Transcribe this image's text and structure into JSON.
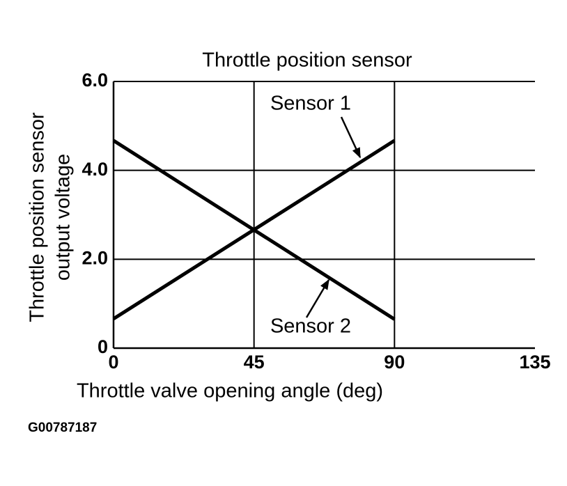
{
  "chart_data": {
    "type": "line",
    "title": "Throttle position sensor",
    "x_label": "Throttle valve opening angle (deg)",
    "y_label": [
      "Throttle position sensor",
      "output voltage"
    ],
    "footnote": "G00787187",
    "x": [
      0,
      90
    ],
    "series": [
      {
        "name": "Sensor 1",
        "color": "#000000",
        "values": [
          0.66,
          4.67
        ]
      },
      {
        "name": "Sensor 2",
        "color": "#000000",
        "values": [
          4.67,
          0.65
        ]
      }
    ],
    "xlim": [
      0,
      135
    ],
    "xticks": [
      0,
      45,
      90,
      135
    ],
    "ylim": [
      0,
      6
    ],
    "yticks": [
      0,
      {
        "value": 2,
        "label": "2.0"
      },
      {
        "value": 4,
        "label": "4.0"
      },
      {
        "value": 6,
        "label": "6.0"
      }
    ],
    "grid": true
  }
}
